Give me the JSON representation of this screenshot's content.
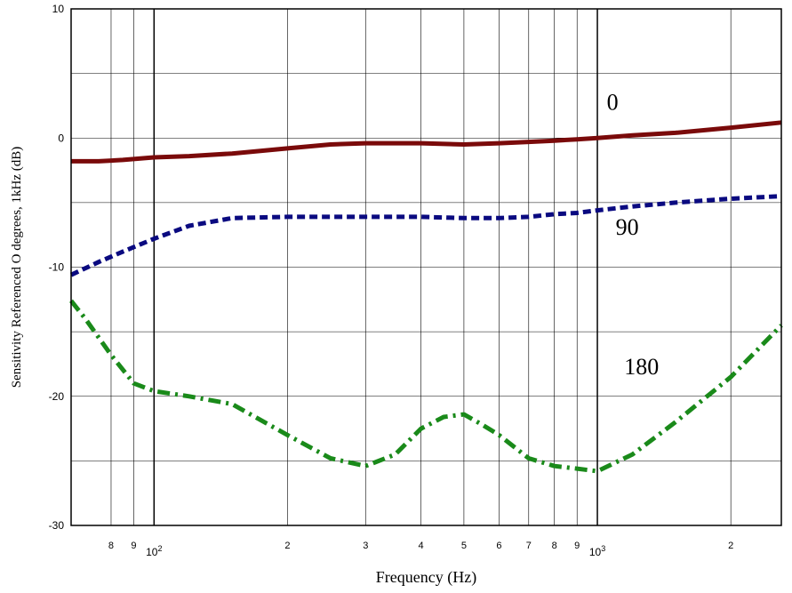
{
  "chart_data": {
    "type": "line",
    "xlabel": "Frequency (Hz)",
    "ylabel": "Sensitivity Referenced  O degrees, 1kHz (dB)",
    "x_scale": "log",
    "xlim": [
      65,
      2600
    ],
    "ylim": [
      -30,
      10
    ],
    "grid": true,
    "y_ticks": [
      {
        "value": 10,
        "label": "10"
      },
      {
        "value": 0,
        "label": "0"
      },
      {
        "value": -10,
        "label": "-10"
      },
      {
        "value": -20,
        "label": "-20"
      },
      {
        "value": -30,
        "label": "-30"
      }
    ],
    "x_ticks": [
      {
        "value": 80,
        "label": "8",
        "exp": ""
      },
      {
        "value": 90,
        "label": "9",
        "exp": ""
      },
      {
        "value": 100,
        "label": "10",
        "exp": "2"
      },
      {
        "value": 200,
        "label": "2",
        "exp": ""
      },
      {
        "value": 300,
        "label": "3",
        "exp": ""
      },
      {
        "value": 400,
        "label": "4",
        "exp": ""
      },
      {
        "value": 500,
        "label": "5",
        "exp": ""
      },
      {
        "value": 600,
        "label": "6",
        "exp": ""
      },
      {
        "value": 700,
        "label": "7",
        "exp": ""
      },
      {
        "value": 800,
        "label": "8",
        "exp": ""
      },
      {
        "value": 900,
        "label": "9",
        "exp": ""
      },
      {
        "value": 1000,
        "label": "10",
        "exp": "3"
      },
      {
        "value": 2000,
        "label": "2",
        "exp": ""
      }
    ],
    "series": [
      {
        "name": "0",
        "color": "#7a0a0a",
        "style": "solid",
        "label_at": [
          1050,
          2.2
        ],
        "x": [
          65,
          75,
          85,
          100,
          120,
          150,
          200,
          250,
          300,
          400,
          500,
          600,
          700,
          800,
          900,
          1000,
          1200,
          1500,
          2000,
          2600
        ],
        "y": [
          -1.8,
          -1.8,
          -1.7,
          -1.5,
          -1.4,
          -1.2,
          -0.8,
          -0.5,
          -0.4,
          -0.4,
          -0.5,
          -0.4,
          -0.3,
          -0.2,
          -0.1,
          0.0,
          0.2,
          0.4,
          0.8,
          1.2
        ]
      },
      {
        "name": "90",
        "color": "#0a0a80",
        "style": "dashed",
        "label_at": [
          1100,
          -7.5
        ],
        "x": [
          65,
          75,
          85,
          100,
          120,
          150,
          200,
          250,
          300,
          400,
          500,
          600,
          700,
          800,
          900,
          1000,
          1200,
          1500,
          2000,
          2600
        ],
        "y": [
          -10.6,
          -9.6,
          -8.8,
          -7.8,
          -6.8,
          -6.2,
          -6.1,
          -6.1,
          -6.1,
          -6.1,
          -6.2,
          -6.2,
          -6.1,
          -5.9,
          -5.8,
          -5.6,
          -5.3,
          -5.0,
          -4.7,
          -4.5
        ]
      },
      {
        "name": "180",
        "color": "#1a8a1a",
        "style": "dashdot",
        "label_at": [
          1150,
          -18.3
        ],
        "x": [
          65,
          70,
          80,
          90,
          100,
          120,
          150,
          200,
          250,
          300,
          350,
          400,
          450,
          500,
          550,
          600,
          700,
          800,
          900,
          1000,
          1200,
          1500,
          2000,
          2600
        ],
        "y": [
          -12.6,
          -14.0,
          -16.8,
          -19.0,
          -19.6,
          -20.0,
          -20.6,
          -23.0,
          -24.8,
          -25.4,
          -24.5,
          -22.5,
          -21.6,
          -21.4,
          -22.2,
          -23.0,
          -24.8,
          -25.4,
          -25.6,
          -25.8,
          -24.5,
          -22.0,
          -18.5,
          -14.5
        ]
      }
    ]
  }
}
